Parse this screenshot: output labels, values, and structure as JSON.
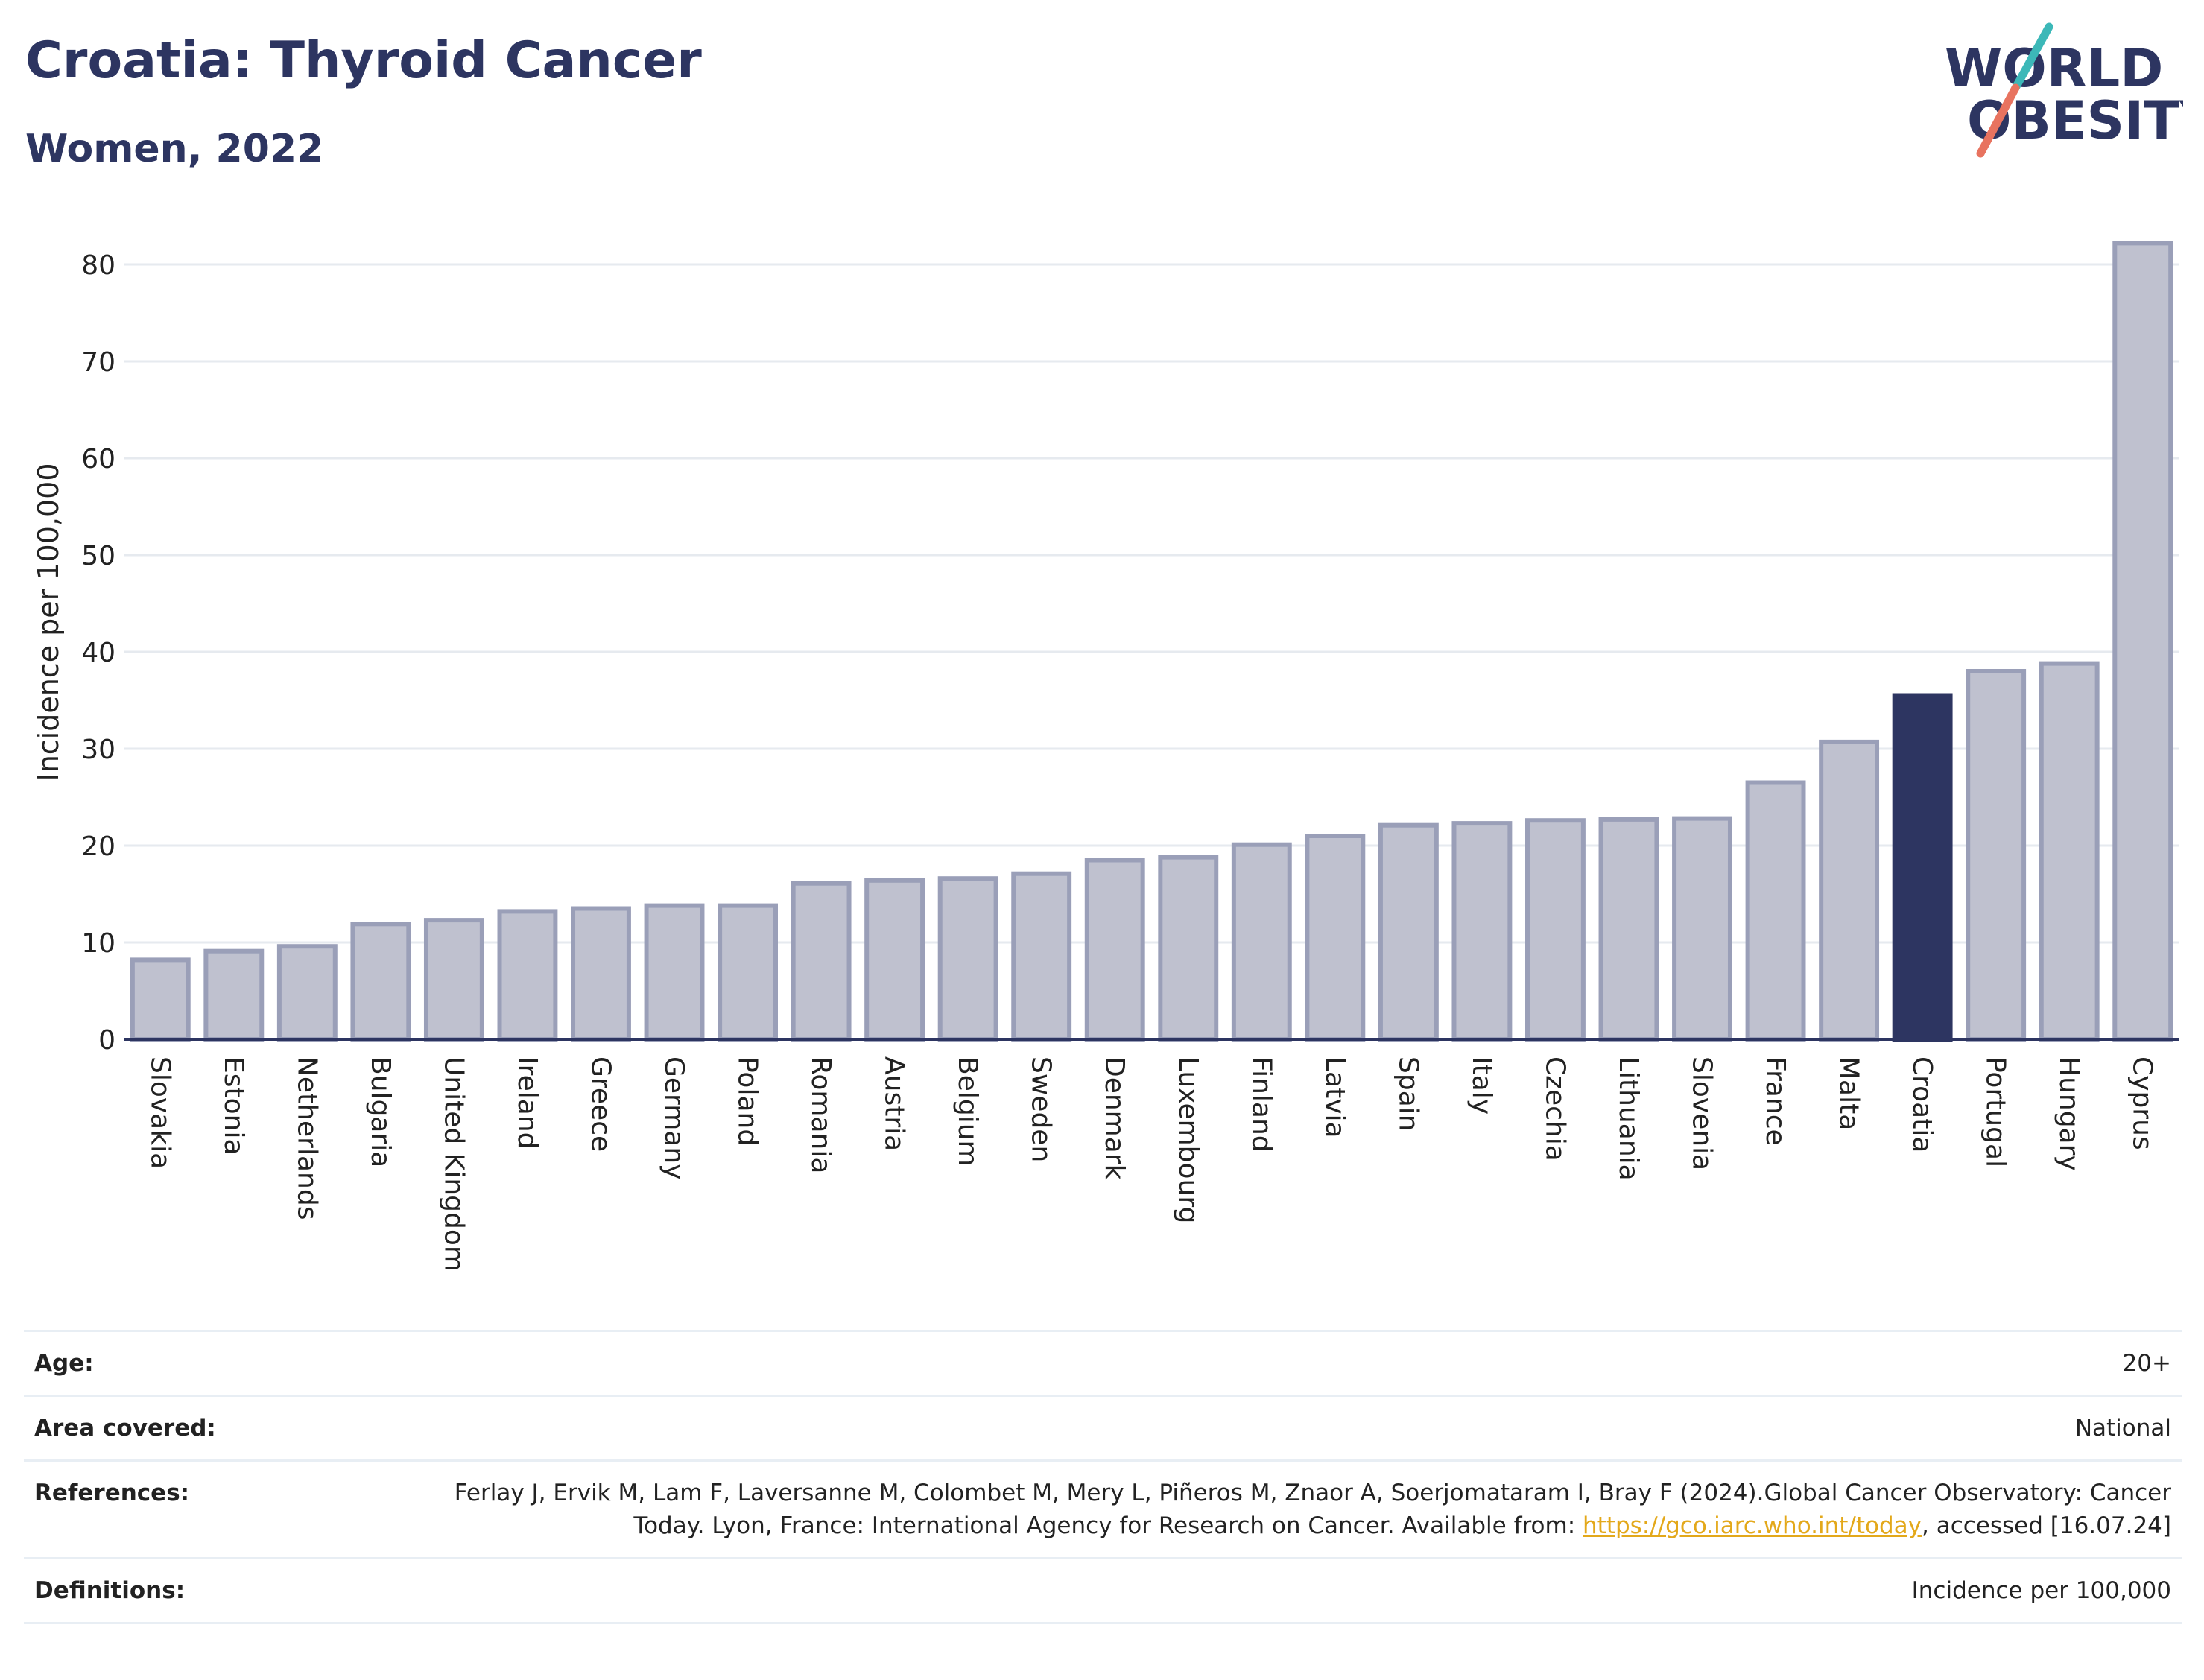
{
  "header": {
    "title": "Croatia: Thyroid Cancer",
    "subtitle": "Women, 2022",
    "logo_line1": "WORLD",
    "logo_line2": "OBESITY"
  },
  "colors": {
    "navy": "#2d3561",
    "bar_default": "#bfc1cf",
    "bar_border": "#9a9fb8",
    "highlight": "#2d3561",
    "link": "#e3a81a",
    "logo_teal": "#3cb8b8",
    "logo_coral": "#e8735f"
  },
  "chart_data": {
    "type": "bar",
    "ylabel": "Incidence per 100,000",
    "xlabel": "",
    "ylim": [
      0,
      83
    ],
    "yticks": [
      0,
      10,
      20,
      30,
      40,
      50,
      60,
      70,
      80
    ],
    "grid": true,
    "highlight": "Croatia",
    "categories": [
      "Slovakia",
      "Estonia",
      "Netherlands",
      "Bulgaria",
      "United Kingdom",
      "Ireland",
      "Greece",
      "Germany",
      "Poland",
      "Romania",
      "Austria",
      "Belgium",
      "Sweden",
      "Denmark",
      "Luxembourg",
      "Finland",
      "Latvia",
      "Spain",
      "Italy",
      "Czechia",
      "Lithuania",
      "Slovenia",
      "France",
      "Malta",
      "Croatia",
      "Portugal",
      "Hungary",
      "Cyprus"
    ],
    "values": [
      8.2,
      9.1,
      9.6,
      11.9,
      12.3,
      13.2,
      13.5,
      13.8,
      13.8,
      16.1,
      16.4,
      16.6,
      17.1,
      18.5,
      18.8,
      20.1,
      21.0,
      22.1,
      22.3,
      22.6,
      22.7,
      22.8,
      26.5,
      30.7,
      35.5,
      38.0,
      38.8,
      82.2
    ]
  },
  "info": {
    "age_label": "Age:",
    "age_value": "20+",
    "area_label": "Area covered:",
    "area_value": "National",
    "references_label": "References:",
    "references_text": "Ferlay J, Ervik M, Lam F, Laversanne M, Colombet M, Mery L, Piñeros M, Znaor A, Soerjomataram I, Bray F (2024).Global Cancer Observatory: Cancer Today. Lyon, France: International Agency for Research on Cancer. Available from: ",
    "references_link": "https://gco.iarc.who.int/today",
    "references_suffix": ", accessed [16.07.24]",
    "definitions_label": "Definitions:",
    "definitions_value": "Incidence per 100,000"
  }
}
